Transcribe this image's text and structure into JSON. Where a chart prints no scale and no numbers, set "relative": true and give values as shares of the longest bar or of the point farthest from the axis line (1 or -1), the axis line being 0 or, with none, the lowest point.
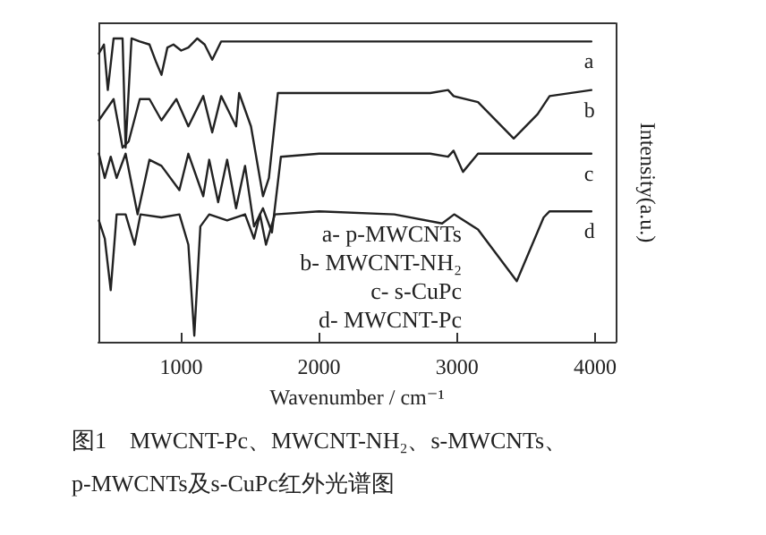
{
  "chart_data": {
    "type": "line",
    "relative": true,
    "xlabel": "Wavenumber / cm⁻¹",
    "ylabel": "Intensity(a.u.)",
    "xlim": [
      400,
      4150
    ],
    "xticks": [
      1000,
      2000,
      3000,
      4000
    ],
    "grid": false,
    "marker": "none",
    "line_style": "solid",
    "series": [
      {
        "name": "a",
        "color": "#222222",
        "x": [
          403,
          440,
          468,
          510,
          575,
          597,
          640,
          700,
          770,
          820,
          857,
          900,
          944,
          1000,
          1052,
          1117,
          1170,
          1225,
          1290,
          1500,
          2000,
          2500,
          3000,
          3500,
          3974
        ],
        "values": [
          0.95,
          0.98,
          0.83,
          1,
          1,
          0.64,
          1,
          0.99,
          0.98,
          0.92,
          0.88,
          0.97,
          0.98,
          0.96,
          0.97,
          1,
          0.98,
          0.93,
          0.99,
          0.99,
          0.99,
          0.99,
          0.99,
          0.99,
          0.99
        ]
      },
      {
        "name": "b",
        "color": "#222222",
        "x": [
          403,
          510,
          575,
          619,
          700,
          770,
          857,
          965,
          1052,
          1160,
          1225,
          1290,
          1355,
          1398,
          1420,
          1506,
          1593,
          1636,
          1701,
          2000,
          2500,
          2805,
          2935,
          2975,
          3152,
          3411,
          3584,
          3671,
          3974
        ],
        "values": [
          0.73,
          0.8,
          0.64,
          0.66,
          0.8,
          0.8,
          0.73,
          0.8,
          0.71,
          0.81,
          0.69,
          0.81,
          0.75,
          0.71,
          0.82,
          0.71,
          0.48,
          0.54,
          0.82,
          0.82,
          0.82,
          0.82,
          0.83,
          0.81,
          0.79,
          0.67,
          0.75,
          0.81,
          0.83
        ]
      },
      {
        "name": "c",
        "color": "#222222",
        "x": [
          403,
          446,
          489,
          532,
          597,
          684,
          770,
          857,
          987,
          1052,
          1160,
          1203,
          1268,
          1333,
          1398,
          1463,
          1528,
          1593,
          1658,
          1723,
          2000,
          2500,
          2805,
          2935,
          2975,
          3043,
          3152,
          3500,
          3974
        ],
        "values": [
          0.62,
          0.54,
          0.61,
          0.54,
          0.62,
          0.42,
          0.6,
          0.58,
          0.5,
          0.62,
          0.48,
          0.6,
          0.46,
          0.6,
          0.44,
          0.58,
          0.38,
          0.44,
          0.36,
          0.61,
          0.62,
          0.62,
          0.62,
          0.61,
          0.63,
          0.56,
          0.62,
          0.62,
          0.62
        ]
      },
      {
        "name": "d",
        "color": "#222222",
        "x": [
          403,
          446,
          489,
          532,
          597,
          662,
          705,
          857,
          987,
          1052,
          1095,
          1139,
          1203,
          1333,
          1463,
          1528,
          1571,
          1615,
          1679,
          2000,
          2545,
          2892,
          2979,
          3152,
          3433,
          3628,
          3671,
          3974
        ],
        "values": [
          0.4,
          0.34,
          0.17,
          0.42,
          0.42,
          0.32,
          0.42,
          0.41,
          0.42,
          0.32,
          0.02,
          0.38,
          0.42,
          0.4,
          0.42,
          0.34,
          0.42,
          0.32,
          0.42,
          0.43,
          0.42,
          0.39,
          0.42,
          0.37,
          0.2,
          0.41,
          0.43,
          0.43
        ]
      }
    ],
    "annotations": [
      "a- p-MWCNTs",
      "b- MWCNT-NH₂",
      "c- s-CuPc",
      "d- MWCNT-Pc",
      "图1　MWCNT-Pc、MWCNT-NH₂、s-MWCNTs、p-MWCNTs及s-CuPc红外光谱图"
    ]
  }
}
